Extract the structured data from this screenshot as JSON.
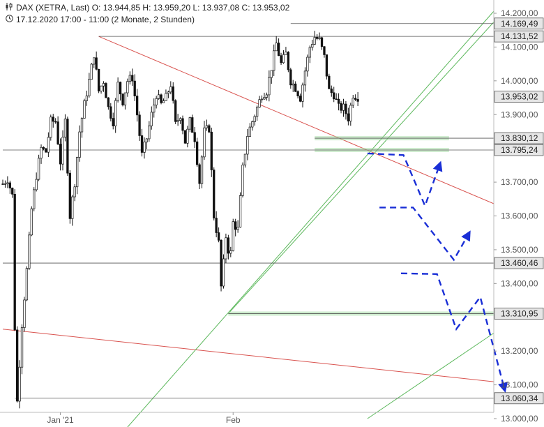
{
  "header": {
    "instrument_icon": "candlestick-icon",
    "ohlc": "DAX (XETRA, Last)  O: 13.944,85  H: 13.959,20  L: 13.937,08  C: 13.953,02",
    "clock_icon": "clock-icon",
    "range": "17.12.2020 17:00 - 11:00  (2 Monate, 2 Stunden)"
  },
  "chart_data": {
    "type": "candlestick",
    "title": "DAX (XETRA, Last)",
    "interval": "2 Stunden",
    "period": "17.12.2020 17:00 - 11:00",
    "ylim": [
      13000,
      14200
    ],
    "y_ticks": [
      {
        "value": 14200,
        "label": "14.200,00"
      },
      {
        "value": 14100,
        "label": "14.100,00"
      },
      {
        "value": 14000,
        "label": "14.000,00"
      },
      {
        "value": 13900,
        "label": "13.900,00"
      },
      {
        "value": 13700,
        "label": "13.700,00"
      },
      {
        "value": 13600,
        "label": "13.600,00"
      },
      {
        "value": 13500,
        "label": "13.500,00"
      },
      {
        "value": 13400,
        "label": "13.400,00"
      },
      {
        "value": 13200,
        "label": "13.200,00"
      },
      {
        "value": 13100,
        "label": "13.100,00"
      },
      {
        "value": 13000,
        "label": "13.000,00"
      }
    ],
    "x_ticks": [
      {
        "bar": 24,
        "label": "Jan '21"
      },
      {
        "bar": 96,
        "label": "Feb"
      }
    ],
    "bar_count": 150,
    "close_path": [
      [
        0,
        13695
      ],
      [
        2,
        13710
      ],
      [
        4,
        13660
      ],
      [
        5,
        13270
      ],
      [
        6,
        13050
      ],
      [
        8,
        13280
      ],
      [
        10,
        13440
      ],
      [
        12,
        13620
      ],
      [
        14,
        13720
      ],
      [
        16,
        13800
      ],
      [
        18,
        13790
      ],
      [
        20,
        13880
      ],
      [
        22,
        13880
      ],
      [
        24,
        13760
      ],
      [
        25,
        13820
      ],
      [
        26,
        13880
      ],
      [
        28,
        13600
      ],
      [
        30,
        13700
      ],
      [
        32,
        13850
      ],
      [
        34,
        13930
      ],
      [
        36,
        14000
      ],
      [
        38,
        14080
      ],
      [
        40,
        13970
      ],
      [
        42,
        14000
      ],
      [
        44,
        13920
      ],
      [
        46,
        13880
      ],
      [
        48,
        13990
      ],
      [
        50,
        13940
      ],
      [
        52,
        14000
      ],
      [
        54,
        14010
      ],
      [
        56,
        13900
      ],
      [
        58,
        13780
      ],
      [
        60,
        13830
      ],
      [
        62,
        13900
      ],
      [
        64,
        13960
      ],
      [
        66,
        13930
      ],
      [
        68,
        13950
      ],
      [
        70,
        13990
      ],
      [
        72,
        13870
      ],
      [
        74,
        13900
      ],
      [
        76,
        13820
      ],
      [
        78,
        13880
      ],
      [
        80,
        13830
      ],
      [
        82,
        13700
      ],
      [
        84,
        13850
      ],
      [
        86,
        13860
      ],
      [
        88,
        13600
      ],
      [
        90,
        13520
      ],
      [
        91,
        13390
      ],
      [
        92,
        13460
      ],
      [
        93,
        13540
      ],
      [
        94,
        13500
      ],
      [
        95,
        13490
      ],
      [
        96,
        13580
      ],
      [
        98,
        13560
      ],
      [
        100,
        13740
      ],
      [
        102,
        13840
      ],
      [
        104,
        13880
      ],
      [
        106,
        13920
      ],
      [
        108,
        13960
      ],
      [
        110,
        13970
      ],
      [
        112,
        14040
      ],
      [
        114,
        14110
      ],
      [
        116,
        14050
      ],
      [
        118,
        14080
      ],
      [
        120,
        14000
      ],
      [
        122,
        13980
      ],
      [
        124,
        13950
      ],
      [
        126,
        14030
      ],
      [
        128,
        14100
      ],
      [
        130,
        14130
      ],
      [
        132,
        14120
      ],
      [
        134,
        14070
      ],
      [
        136,
        13970
      ],
      [
        138,
        13960
      ],
      [
        140,
        13920
      ],
      [
        142,
        13920
      ],
      [
        144,
        13890
      ],
      [
        146,
        13960
      ],
      [
        148,
        13953
      ]
    ],
    "last_close": {
      "value": 13953.02,
      "label": "13.953,02"
    },
    "levels": [
      {
        "value": 14169.49,
        "label": "14.169,49",
        "color": "#555555",
        "from_bar": 120
      },
      {
        "value": 14131.52,
        "label": "14.131,52",
        "color": "#555555",
        "from_bar": 40
      },
      {
        "value": 13830.12,
        "label": "13.830,12",
        "color": "#555555",
        "from_bar": 130
      },
      {
        "value": 13795.24,
        "label": "13.795,24",
        "color": "#555555",
        "from_bar": 0
      },
      {
        "value": 13460.46,
        "label": "13.460,46",
        "color": "#555555",
        "from_bar": 0
      },
      {
        "value": 13310.95,
        "label": "13.310,95",
        "color": "#555555",
        "from_bar": 94
      },
      {
        "value": 13060.34,
        "label": "13.060,34",
        "color": "#555555",
        "from_bar": 5
      }
    ],
    "support_zones": [
      {
        "value": 13830.12,
        "from_bar": 130,
        "to_bar": 186
      },
      {
        "value": 13795.24,
        "from_bar": 130,
        "to_bar": 186
      },
      {
        "value": 13310.95,
        "from_bar": 94,
        "to_bar": 208
      }
    ],
    "trendlines": [
      {
        "color": "#d9534f",
        "points": [
          [
            40,
            14131.52
          ],
          [
            230,
            13560
          ]
        ]
      },
      {
        "color": "#d9534f",
        "points": [
          [
            0,
            13265
          ],
          [
            230,
            13090
          ]
        ]
      },
      {
        "color": "#5cb85c",
        "points": [
          [
            52,
            12975
          ],
          [
            207,
            14225
          ]
        ]
      },
      {
        "color": "#5cb85c",
        "points": [
          [
            94,
            13310.95
          ],
          [
            208,
            14200
          ]
        ]
      },
      {
        "color": "#5cb85c",
        "points": [
          [
            152,
            13000
          ],
          [
            230,
            13375
          ]
        ]
      }
    ],
    "scenarios": [
      {
        "color": "#1a2fd6",
        "points": [
          [
            152,
            13785
          ],
          [
            167,
            13780
          ],
          [
            176,
            13630
          ],
          [
            182,
            13750
          ]
        ]
      },
      {
        "color": "#1a2fd6",
        "points": [
          [
            157,
            13625
          ],
          [
            171,
            13625
          ],
          [
            188,
            13470
          ],
          [
            194,
            13545
          ]
        ]
      },
      {
        "color": "#1a2fd6",
        "points": [
          [
            166,
            13430
          ],
          [
            181,
            13428
          ],
          [
            189,
            13265
          ],
          [
            199,
            13360
          ],
          [
            209,
            13090
          ]
        ]
      }
    ]
  }
}
